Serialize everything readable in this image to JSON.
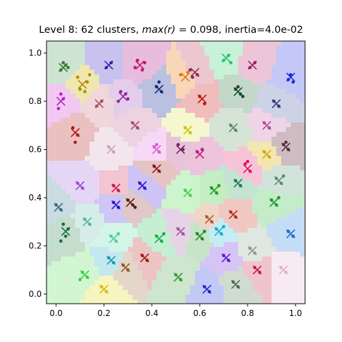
{
  "chart_data": {
    "type": "scatter",
    "title": "Level 8: 62 clusters, max(r) = 0.098, inertia=4.0e-02",
    "xlabel": "",
    "ylabel": "",
    "xlim": [
      -0.04,
      1.04
    ],
    "ylim": [
      -0.04,
      1.05
    ],
    "xticks": [
      "0.0",
      "0.2",
      "0.4",
      "0.6",
      "0.8",
      "1.0"
    ],
    "yticks": [
      "0.0",
      "0.2",
      "0.4",
      "0.6",
      "0.8",
      "1.0"
    ],
    "grid": false,
    "clusters": [
      {
        "x": 0.03,
        "y": 0.94,
        "color": "#2e7d32",
        "region": "#cfe3d2",
        "points": [
          [
            0.02,
            0.93
          ],
          [
            0.04,
            0.95
          ],
          [
            0.03,
            0.96
          ],
          [
            0.05,
            0.94
          ]
        ]
      },
      {
        "x": 0.11,
        "y": 0.87,
        "color": "#b08d00",
        "region": "#efe6b0",
        "points": [
          [
            0.09,
            0.9
          ],
          [
            0.13,
            0.88
          ],
          [
            0.1,
            0.85
          ],
          [
            0.14,
            0.91
          ],
          [
            0.12,
            0.84
          ]
        ]
      },
      {
        "x": 0.22,
        "y": 0.95,
        "color": "#3a1fb0",
        "region": "#c9c2ef",
        "points": [
          [
            0.21,
            0.94
          ],
          [
            0.23,
            0.96
          ]
        ]
      },
      {
        "x": 0.35,
        "y": 0.95,
        "color": "#c0186e",
        "region": "#e8bcdd",
        "points": [
          [
            0.33,
            0.94
          ],
          [
            0.37,
            0.96
          ],
          [
            0.34,
            0.97
          ],
          [
            0.36,
            0.93
          ]
        ]
      },
      {
        "x": 0.54,
        "y": 0.9,
        "color": "#e07b10",
        "region": "#f7d7b8",
        "points": [
          [
            0.52,
            0.91
          ],
          [
            0.55,
            0.92
          ]
        ]
      },
      {
        "x": 0.58,
        "y": 0.92,
        "color": "#8e2b4a",
        "region": "#ecc7d2",
        "points": [
          [
            0.56,
            0.93
          ],
          [
            0.59,
            0.91
          ],
          [
            0.57,
            0.9
          ]
        ]
      },
      {
        "x": 0.71,
        "y": 0.98,
        "color": "#26c26a",
        "region": "#c8f2d8",
        "points": [
          [
            0.7,
            0.97
          ],
          [
            0.72,
            0.99
          ],
          [
            0.73,
            0.96
          ]
        ]
      },
      {
        "x": 0.82,
        "y": 0.95,
        "color": "#9c1e5a",
        "region": "#ecc6d8",
        "points": [
          [
            0.81,
            0.94
          ],
          [
            0.83,
            0.96
          ]
        ]
      },
      {
        "x": 0.98,
        "y": 0.9,
        "color": "#1d2ae0",
        "region": "#c3c8f7",
        "points": [
          [
            0.97,
            0.89
          ],
          [
            0.99,
            0.88
          ],
          [
            0.98,
            0.91
          ]
        ]
      },
      {
        "x": 0.02,
        "y": 0.8,
        "color": "#c21cc9",
        "region": "#f0c8f1",
        "points": [
          [
            0.02,
            0.83
          ],
          [
            0.03,
            0.81
          ],
          [
            0.01,
            0.77
          ]
        ]
      },
      {
        "x": 0.18,
        "y": 0.79,
        "color": "#a64f5c",
        "region": "#efd7db",
        "points": [
          [
            0.17,
            0.78
          ],
          [
            0.19,
            0.8
          ]
        ]
      },
      {
        "x": 0.28,
        "y": 0.82,
        "color": "#8a2a9e",
        "region": "#e3cdea",
        "points": [
          [
            0.27,
            0.84
          ],
          [
            0.29,
            0.83
          ],
          [
            0.26,
            0.8
          ],
          [
            0.3,
            0.81
          ]
        ]
      },
      {
        "x": 0.43,
        "y": 0.85,
        "color": "#1a2a7a",
        "region": "#b9c0e0",
        "points": [
          [
            0.42,
            0.86
          ],
          [
            0.44,
            0.84
          ],
          [
            0.43,
            0.88
          ]
        ]
      },
      {
        "x": 0.61,
        "y": 0.81,
        "color": "#c01010",
        "region": "#f0bcbc",
        "points": [
          [
            0.6,
            0.82
          ],
          [
            0.62,
            0.79
          ]
        ]
      },
      {
        "x": 0.76,
        "y": 0.84,
        "color": "#134d2a",
        "region": "#c3d8c9",
        "points": [
          [
            0.75,
            0.85
          ],
          [
            0.77,
            0.83
          ],
          [
            0.76,
            0.86
          ],
          [
            0.78,
            0.82
          ]
        ]
      },
      {
        "x": 0.92,
        "y": 0.79,
        "color": "#2d3a78",
        "region": "#cdd2e6",
        "points": [
          [
            0.91,
            0.8
          ],
          [
            0.93,
            0.78
          ]
        ]
      },
      {
        "x": 0.08,
        "y": 0.67,
        "color": "#b01616",
        "region": "#ebc0c0",
        "points": [
          [
            0.07,
            0.69
          ],
          [
            0.09,
            0.66
          ],
          [
            0.08,
            0.63
          ]
        ]
      },
      {
        "x": 0.33,
        "y": 0.7,
        "color": "#a44d7a",
        "region": "#ecd3df",
        "points": [
          [
            0.32,
            0.71
          ],
          [
            0.34,
            0.69
          ]
        ]
      },
      {
        "x": 0.55,
        "y": 0.68,
        "color": "#c8c800",
        "region": "#f6f6cf",
        "points": [
          [
            0.54,
            0.69
          ],
          [
            0.56,
            0.67
          ]
        ]
      },
      {
        "x": 0.74,
        "y": 0.69,
        "color": "#5a8a5a",
        "region": "#d6e4d6",
        "points": [
          [
            0.73,
            0.7
          ],
          [
            0.75,
            0.68
          ]
        ]
      },
      {
        "x": 0.88,
        "y": 0.7,
        "color": "#b34a9a",
        "region": "#f0d4e8",
        "points": [
          [
            0.87,
            0.71
          ],
          [
            0.89,
            0.69
          ]
        ]
      },
      {
        "x": 0.23,
        "y": 0.6,
        "color": "#d3a0b8",
        "region": "#f2e6ec",
        "points": [
          [
            0.22,
            0.61
          ],
          [
            0.24,
            0.59
          ]
        ]
      },
      {
        "x": 0.42,
        "y": 0.6,
        "color": "#d65ad6",
        "region": "#f7d8f7",
        "points": [
          [
            0.41,
            0.61
          ],
          [
            0.43,
            0.59
          ],
          [
            0.42,
            0.62
          ]
        ]
      },
      {
        "x": 0.52,
        "y": 0.6,
        "color": "#7a1f5a",
        "region": "#e7c4da",
        "points": [
          [
            0.51,
            0.62
          ],
          [
            0.53,
            0.6
          ]
        ]
      },
      {
        "x": 0.6,
        "y": 0.58,
        "color": "#c0187a",
        "region": "#ecc4db",
        "points": [
          [
            0.59,
            0.59
          ],
          [
            0.61,
            0.6
          ]
        ]
      },
      {
        "x": 0.8,
        "y": 0.52,
        "color": "#e01060",
        "region": "#f6c4d6",
        "points": [
          [
            0.79,
            0.54
          ],
          [
            0.81,
            0.51
          ],
          [
            0.8,
            0.55
          ]
        ]
      },
      {
        "x": 0.88,
        "y": 0.58,
        "color": "#d6a800",
        "region": "#f3e6b0",
        "points": [
          [
            0.87,
            0.59
          ],
          [
            0.89,
            0.57
          ]
        ]
      },
      {
        "x": 0.96,
        "y": 0.61,
        "color": "#5a2a3a",
        "region": "#cdbcc2",
        "points": [
          [
            0.95,
            0.62
          ],
          [
            0.97,
            0.6
          ],
          [
            0.96,
            0.63
          ]
        ]
      },
      {
        "x": 0.42,
        "y": 0.52,
        "color": "#8a1a1a",
        "region": "#e6c4c4",
        "points": [
          [
            0.41,
            0.53
          ],
          [
            0.43,
            0.51
          ]
        ]
      },
      {
        "x": 0.1,
        "y": 0.45,
        "color": "#9a4ad0",
        "region": "#e6d6f5",
        "points": [
          [
            0.09,
            0.46
          ],
          [
            0.11,
            0.44
          ]
        ]
      },
      {
        "x": 0.25,
        "y": 0.44,
        "color": "#d01a4a",
        "region": "#f3c4d2",
        "points": [
          [
            0.24,
            0.45
          ],
          [
            0.26,
            0.43
          ]
        ]
      },
      {
        "x": 0.36,
        "y": 0.45,
        "color": "#3a10d0",
        "region": "#cdc4f5",
        "points": [
          [
            0.35,
            0.46
          ],
          [
            0.37,
            0.44
          ]
        ]
      },
      {
        "x": 0.55,
        "y": 0.42,
        "color": "#4ad04a",
        "region": "#cdf5cd",
        "points": [
          [
            0.54,
            0.43
          ],
          [
            0.56,
            0.41
          ]
        ]
      },
      {
        "x": 0.66,
        "y": 0.43,
        "color": "#1aa01a",
        "region": "#c4edc4",
        "points": [
          [
            0.65,
            0.44
          ],
          [
            0.67,
            0.42
          ],
          [
            0.68,
            0.45
          ]
        ]
      },
      {
        "x": 0.76,
        "y": 0.46,
        "color": "#1a7a4a",
        "region": "#c4e3d2",
        "points": [
          [
            0.75,
            0.47
          ],
          [
            0.77,
            0.45
          ]
        ]
      },
      {
        "x": 0.93,
        "y": 0.47,
        "color": "#5a8a7a",
        "region": "#d2e3dc",
        "points": [
          [
            0.92,
            0.48
          ],
          [
            0.94,
            0.46
          ],
          [
            0.95,
            0.49
          ]
        ]
      },
      {
        "x": 0.01,
        "y": 0.36,
        "color": "#3a6a7a",
        "region": "#c8dce2",
        "points": [
          [
            0.0,
            0.37
          ],
          [
            0.02,
            0.35
          ]
        ]
      },
      {
        "x": 0.25,
        "y": 0.37,
        "color": "#2a10d0",
        "region": "#cfc6f6",
        "points": [
          [
            0.24,
            0.38
          ],
          [
            0.26,
            0.36
          ]
        ]
      },
      {
        "x": 0.31,
        "y": 0.38,
        "color": "#5a1a1a",
        "region": "#e0c8c8",
        "points": [
          [
            0.3,
            0.39
          ],
          [
            0.32,
            0.37
          ],
          [
            0.33,
            0.36
          ]
        ]
      },
      {
        "x": 0.74,
        "y": 0.33,
        "color": "#c02a1a",
        "region": "#f0c8c2",
        "points": [
          [
            0.73,
            0.34
          ],
          [
            0.75,
            0.32
          ]
        ]
      },
      {
        "x": 0.91,
        "y": 0.38,
        "color": "#1a9a2a",
        "region": "#c4ecc8",
        "points": [
          [
            0.9,
            0.39
          ],
          [
            0.92,
            0.37
          ],
          [
            0.93,
            0.4
          ]
        ]
      },
      {
        "x": 0.04,
        "y": 0.26,
        "color": "#1a6a3a",
        "region": "#c4ddcd",
        "points": [
          [
            0.03,
            0.29
          ],
          [
            0.05,
            0.27
          ],
          [
            0.04,
            0.24
          ],
          [
            0.02,
            0.22
          ]
        ]
      },
      {
        "x": 0.13,
        "y": 0.3,
        "color": "#5ab0a0",
        "region": "#d4ede8",
        "points": [
          [
            0.12,
            0.31
          ],
          [
            0.14,
            0.29
          ]
        ]
      },
      {
        "x": 0.24,
        "y": 0.23,
        "color": "#4ad0a0",
        "region": "#d2f5e8",
        "points": [
          [
            0.23,
            0.24
          ],
          [
            0.25,
            0.22
          ],
          [
            0.26,
            0.25
          ]
        ]
      },
      {
        "x": 0.43,
        "y": 0.23,
        "color": "#1ab04a",
        "region": "#c4efd2",
        "points": [
          [
            0.42,
            0.24
          ],
          [
            0.44,
            0.22
          ],
          [
            0.45,
            0.25
          ]
        ]
      },
      {
        "x": 0.52,
        "y": 0.26,
        "color": "#9a5a9a",
        "region": "#e6d4e6",
        "points": [
          [
            0.51,
            0.27
          ],
          [
            0.53,
            0.25
          ]
        ]
      },
      {
        "x": 0.6,
        "y": 0.24,
        "color": "#2a8a2a",
        "region": "#c8e4c8",
        "points": [
          [
            0.59,
            0.25
          ],
          [
            0.61,
            0.23
          ],
          [
            0.62,
            0.26
          ]
        ]
      },
      {
        "x": 0.68,
        "y": 0.26,
        "color": "#10b0d0",
        "region": "#c4ecf5",
        "points": [
          [
            0.67,
            0.27
          ],
          [
            0.69,
            0.25
          ],
          [
            0.7,
            0.28
          ]
        ]
      },
      {
        "x": 0.82,
        "y": 0.18,
        "color": "#8a9a8a",
        "region": "#e0e6e0",
        "points": [
          [
            0.81,
            0.19
          ],
          [
            0.83,
            0.17
          ]
        ]
      },
      {
        "x": 0.98,
        "y": 0.25,
        "color": "#1a6ad0",
        "region": "#c4dcf5",
        "points": [
          [
            0.97,
            0.26
          ],
          [
            0.99,
            0.24
          ]
        ]
      },
      {
        "x": 0.23,
        "y": 0.14,
        "color": "#1a9ab0",
        "region": "#c4e8ef",
        "points": [
          [
            0.22,
            0.15
          ],
          [
            0.24,
            0.13
          ]
        ]
      },
      {
        "x": 0.29,
        "y": 0.11,
        "color": "#8a5a2a",
        "region": "#e4d6c8",
        "points": [
          [
            0.28,
            0.12
          ],
          [
            0.3,
            0.1
          ]
        ]
      },
      {
        "x": 0.37,
        "y": 0.15,
        "color": "#a01a1a",
        "region": "#ecc4c4",
        "points": [
          [
            0.36,
            0.16
          ],
          [
            0.38,
            0.14
          ]
        ]
      },
      {
        "x": 0.71,
        "y": 0.15,
        "color": "#5a1ad0",
        "region": "#d6c4f5",
        "points": [
          [
            0.7,
            0.16
          ],
          [
            0.72,
            0.14
          ]
        ]
      },
      {
        "x": 0.12,
        "y": 0.08,
        "color": "#3ad03a",
        "region": "#d2f5d2",
        "points": [
          [
            0.11,
            0.09
          ],
          [
            0.13,
            0.07
          ],
          [
            0.1,
            0.06
          ]
        ]
      },
      {
        "x": 0.51,
        "y": 0.07,
        "color": "#3a9a3a",
        "region": "#cde6cd",
        "points": [
          [
            0.5,
            0.08
          ],
          [
            0.52,
            0.06
          ]
        ]
      },
      {
        "x": 0.63,
        "y": 0.02,
        "color": "#1a2ad0",
        "region": "#c4c8f5",
        "points": [
          [
            0.62,
            0.03
          ],
          [
            0.64,
            0.01
          ]
        ]
      },
      {
        "x": 0.75,
        "y": 0.04,
        "color": "#4a6a4a",
        "region": "#d0dcd0",
        "points": [
          [
            0.74,
            0.05
          ],
          [
            0.76,
            0.03
          ]
        ]
      },
      {
        "x": 0.84,
        "y": 0.1,
        "color": "#c01a3a",
        "region": "#f0c4cd",
        "points": [
          [
            0.83,
            0.11
          ],
          [
            0.85,
            0.09
          ]
        ]
      },
      {
        "x": 0.95,
        "y": 0.1,
        "color": "#e0b0d0",
        "region": "#f8eaf3",
        "points": [
          [
            0.94,
            0.11
          ],
          [
            0.96,
            0.09
          ]
        ]
      },
      {
        "x": 0.2,
        "y": 0.02,
        "color": "#d0c000",
        "region": "#f6f4bf",
        "points": [
          [
            0.19,
            0.03
          ],
          [
            0.21,
            0.01
          ]
        ]
      },
      {
        "x": 0.64,
        "y": 0.31,
        "color": "#b05a2a",
        "region": "#f0d6c8",
        "points": [
          [
            0.63,
            0.32
          ],
          [
            0.65,
            0.3
          ]
        ]
      }
    ]
  }
}
